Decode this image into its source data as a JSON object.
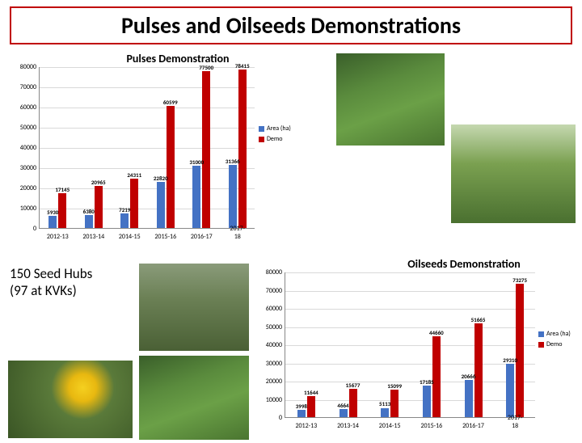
{
  "title": "Pulses and Oilseeds Demonstrations",
  "seed_hubs": {
    "line1": "150 Seed Hubs",
    "line2": "(97 at KVKs)"
  },
  "colors": {
    "series1": "#4472c4",
    "series2": "#c00000",
    "title_border": "#c00000",
    "grid": "#d9d9d9"
  },
  "legend": {
    "s1": "Area (ha)",
    "s2": "Demo"
  },
  "pulses_chart": {
    "title": "Pulses Demonstration",
    "type": "bar",
    "categories": [
      "2012-13",
      "2013-14",
      "2014-15",
      "2015-16",
      "2016-17",
      "2017-18"
    ],
    "series1": [
      5930,
      6380,
      7219,
      22820,
      31000,
      31366
    ],
    "series2": [
      17145,
      20965,
      24311,
      60599,
      77500,
      78415
    ],
    "yticks": [
      0,
      10000,
      20000,
      30000,
      40000,
      50000,
      60000,
      70000,
      80000
    ],
    "ymax": 80000
  },
  "oilseeds_chart": {
    "title": "Oilseeds Demonstration",
    "type": "bar",
    "categories": [
      "2012-13",
      "2013-14",
      "2014-15",
      "2015-16",
      "2016-17",
      "2017-18"
    ],
    "series1": [
      3998,
      4664,
      5113,
      17185,
      20666,
      29310
    ],
    "series2": [
      11644,
      15677,
      15099,
      44660,
      51665,
      73275
    ],
    "yticks": [
      0,
      10000,
      20000,
      30000,
      40000,
      50000,
      60000,
      70000,
      80000
    ],
    "ymax": 80000
  }
}
